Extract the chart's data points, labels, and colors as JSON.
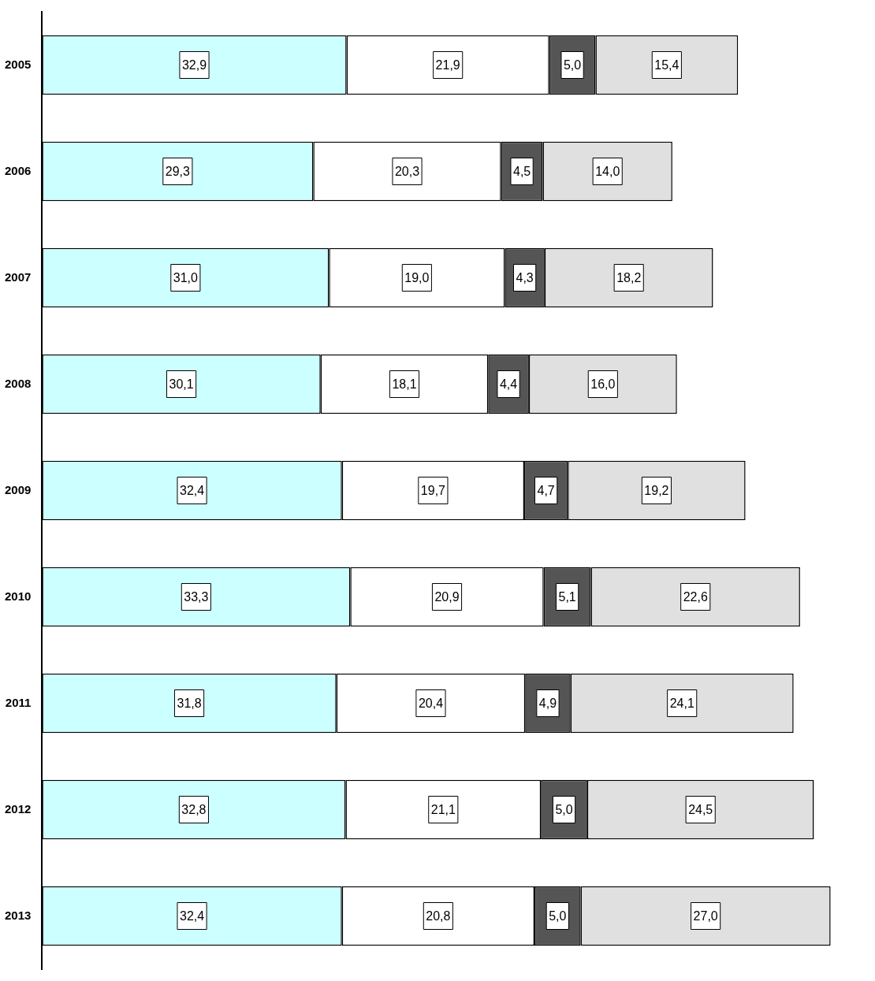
{
  "chart_data": {
    "type": "bar",
    "orientation": "horizontal",
    "stacked": true,
    "legend": false,
    "grid": false,
    "tick_labels": "y",
    "categories": [
      "2005",
      "2006",
      "2007",
      "2008",
      "2009",
      "2010",
      "2011",
      "2012",
      "2013"
    ],
    "series": [
      {
        "color": "#ccffff",
        "values": [
          32.9,
          29.3,
          31.0,
          30.1,
          32.4,
          33.3,
          31.8,
          32.8,
          32.4
        ],
        "value_labels": [
          "32,9",
          "29,3",
          "31,0",
          "30,1",
          "32,4",
          "33,3",
          "31,8",
          "32,8",
          "32,4"
        ]
      },
      {
        "color": "#ffffff",
        "values": [
          21.9,
          20.3,
          19.0,
          18.1,
          19.7,
          20.9,
          20.4,
          21.1,
          20.8
        ],
        "value_labels": [
          "21,9",
          "20,3",
          "19,0",
          "18,1",
          "19,7",
          "20,9",
          "20,4",
          "21,1",
          "20,8"
        ]
      },
      {
        "color": "#555555",
        "values": [
          5.0,
          4.5,
          4.3,
          4.4,
          4.7,
          5.1,
          4.9,
          5.0,
          5.0
        ],
        "value_labels": [
          "5,0",
          "4,5",
          "4,3",
          "4,4",
          "4,7",
          "5,1",
          "4,9",
          "5,0",
          "5,0"
        ]
      },
      {
        "color": "#e0e0e0",
        "values": [
          15.4,
          14.0,
          18.2,
          16.0,
          19.2,
          22.6,
          24.1,
          24.5,
          27.0
        ],
        "value_labels": [
          "15,4",
          "14,0",
          "18,2",
          "16,0",
          "19,2",
          "22,6",
          "24,1",
          "24,5",
          "27,0"
        ]
      }
    ]
  }
}
